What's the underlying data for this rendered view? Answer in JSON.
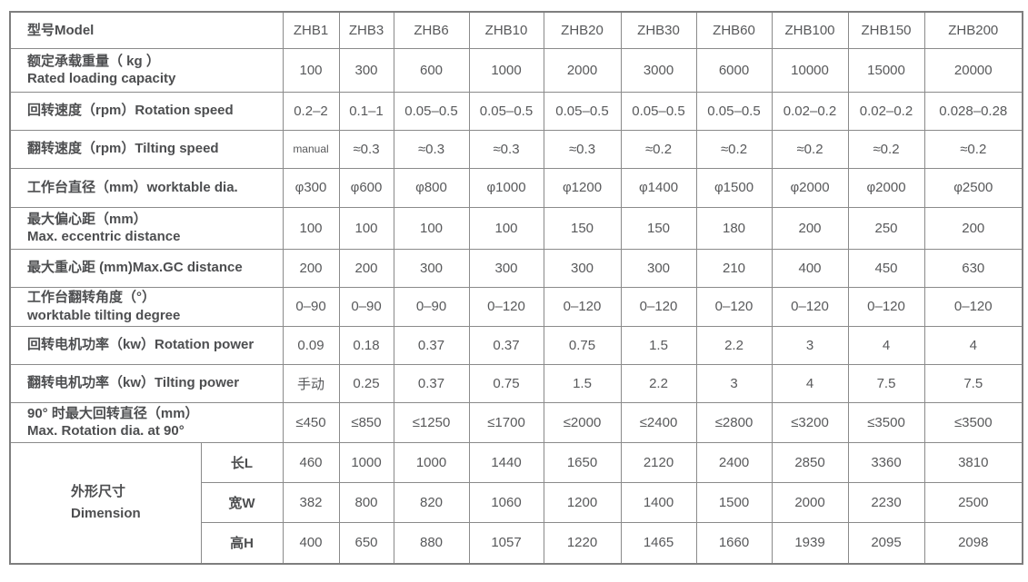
{
  "table": {
    "header": {
      "label": "型号Model",
      "models": [
        "ZHB1",
        "ZHB3",
        "ZHB6",
        "ZHB10",
        "ZHB20",
        "ZHB30",
        "ZHB60",
        "ZHB100",
        "ZHB150",
        "ZHB200"
      ]
    },
    "rows": [
      {
        "label_lines": [
          "额定承载重量（ kg ）",
          "Rated loading capacity"
        ],
        "values": [
          "100",
          "300",
          "600",
          "1000",
          "2000",
          "3000",
          "6000",
          "10000",
          "15000",
          "20000"
        ]
      },
      {
        "label_lines": [
          "回转速度（rpm）Rotation speed"
        ],
        "values": [
          "0.2–2",
          "0.1–1",
          "0.05–0.5",
          "0.05–0.5",
          "0.05–0.5",
          "0.05–0.5",
          "0.05–0.5",
          "0.02–0.2",
          "0.02–0.2",
          "0.028–0.28"
        ]
      },
      {
        "label_lines": [
          "翻转速度（rpm）Tilting speed"
        ],
        "values": [
          "manual",
          "≈0.3",
          "≈0.3",
          "≈0.3",
          "≈0.3",
          "≈0.2",
          "≈0.2",
          "≈0.2",
          "≈0.2",
          "≈0.2"
        ]
      },
      {
        "label_lines": [
          "工作台直径（mm）worktable dia."
        ],
        "values": [
          "φ300",
          "φ600",
          "φ800",
          "φ1000",
          "φ1200",
          "φ1400",
          "φ1500",
          "φ2000",
          "φ2000",
          "φ2500"
        ]
      },
      {
        "label_lines": [
          "最大偏心距（mm）",
          "Max. eccentric distance"
        ],
        "values": [
          "100",
          "100",
          "100",
          "100",
          "150",
          "150",
          "180",
          "200",
          "250",
          "200"
        ]
      },
      {
        "label_lines": [
          "最大重心距 (mm)Max.GC distance"
        ],
        "values": [
          "200",
          "200",
          "300",
          "300",
          "300",
          "300",
          "210",
          "400",
          "450",
          "630"
        ]
      },
      {
        "label_lines": [
          "工作台翻转角度（°）",
          "worktable tilting degree"
        ],
        "values": [
          "0–90",
          "0–90",
          "0–90",
          "0–120",
          "0–120",
          "0–120",
          "0–120",
          "0–120",
          "0–120",
          "0–120"
        ]
      },
      {
        "label_lines": [
          "回转电机功率（kw）Rotation power"
        ],
        "values": [
          "0.09",
          "0.18",
          "0.37",
          "0.37",
          "0.75",
          "1.5",
          "2.2",
          "3",
          "4",
          "4"
        ]
      },
      {
        "label_lines": [
          "翻转电机功率（kw）Tilting power"
        ],
        "values": [
          "手动",
          "0.25",
          "0.37",
          "0.75",
          "1.5",
          "2.2",
          "3",
          "4",
          "7.5",
          "7.5"
        ]
      },
      {
        "label_lines": [
          "90° 时最大回转直径（mm）",
          "Max. Rotation dia. at 90°"
        ],
        "values": [
          "≤450",
          "≤850",
          "≤1250",
          "≤1700",
          "≤2000",
          "≤2400",
          "≤2800",
          "≤3200",
          "≤3500",
          "≤3500"
        ]
      }
    ],
    "dimension": {
      "label_lines": [
        "外形尺寸",
        "Dimension"
      ],
      "rows": [
        {
          "label": "长L",
          "values": [
            "460",
            "1000",
            "1000",
            "1440",
            "1650",
            "2120",
            "2400",
            "2850",
            "3360",
            "3810"
          ]
        },
        {
          "label": "宽W",
          "values": [
            "382",
            "800",
            "820",
            "1060",
            "1200",
            "1400",
            "1500",
            "2000",
            "2230",
            "2500"
          ]
        },
        {
          "label": "高H",
          "values": [
            "400",
            "650",
            "880",
            "1057",
            "1220",
            "1465",
            "1660",
            "1939",
            "2095",
            "2098"
          ]
        }
      ]
    }
  }
}
